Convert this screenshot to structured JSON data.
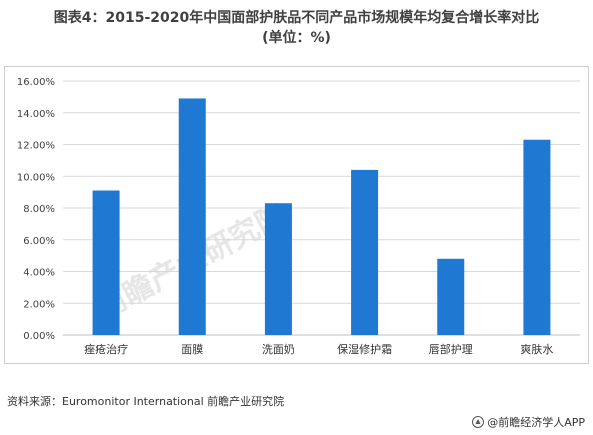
{
  "title": {
    "line1": "图表4：2015-2020年中国面部护肤品不同产品市场规模年均复合增长率对比",
    "line2": "(单位：%)"
  },
  "source": "资料来源：Euromonitor International 前瞻产业研究院",
  "brand": "@前瞻经济学人APP",
  "watermark": "前瞻产业研究院",
  "colors": {
    "bar": "#1f78d1",
    "grid": "#d9d9d9",
    "axis": "#bfbfbf"
  },
  "chart_data": {
    "type": "bar",
    "categories": [
      "痤疮治疗",
      "面膜",
      "洗面奶",
      "保湿修护霜",
      "唇部护理",
      "爽肤水"
    ],
    "values": [
      9.1,
      14.9,
      8.3,
      10.4,
      4.8,
      12.3
    ],
    "ylim": [
      0,
      16
    ],
    "yticks": [
      "0.00%",
      "2.00%",
      "4.00%",
      "6.00%",
      "8.00%",
      "10.00%",
      "12.00%",
      "14.00%",
      "16.00%"
    ],
    "ytick_values": [
      0,
      2,
      4,
      6,
      8,
      10,
      12,
      14,
      16
    ],
    "grid": true
  }
}
